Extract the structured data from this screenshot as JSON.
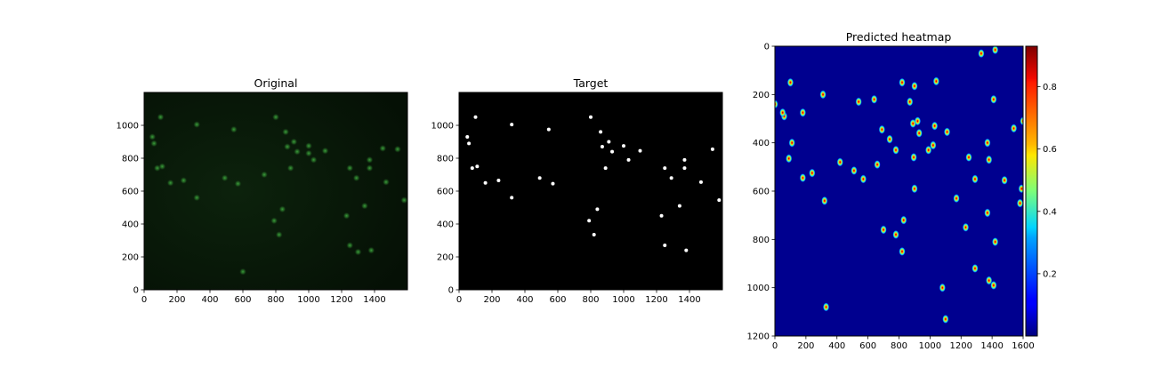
{
  "figure": {
    "background": "#ffffff",
    "frame_color": "#000000"
  },
  "chart_data": [
    {
      "type": "image",
      "title": "Original",
      "xlim": [
        0,
        1600
      ],
      "ylim": [
        1200,
        0
      ],
      "xticks": [
        0,
        200,
        400,
        600,
        800,
        1000,
        1200,
        1400
      ],
      "yticks": [
        0,
        200,
        400,
        600,
        800,
        1000
      ],
      "xtick_labels": [
        "0",
        "200",
        "400",
        "600",
        "800",
        "1000",
        "1200",
        "1400"
      ],
      "ytick_labels": [
        "0",
        "200",
        "400",
        "600",
        "800",
        "1000"
      ],
      "background_color": "#0a1a0a",
      "spot_color": "#3fa83f",
      "points": [
        [
          50,
          930
        ],
        [
          60,
          890
        ],
        [
          80,
          740
        ],
        [
          100,
          1050
        ],
        [
          110,
          750
        ],
        [
          160,
          650
        ],
        [
          240,
          665
        ],
        [
          320,
          1005
        ],
        [
          320,
          560
        ],
        [
          490,
          680
        ],
        [
          545,
          975
        ],
        [
          570,
          645
        ],
        [
          790,
          420
        ],
        [
          800,
          1050
        ],
        [
          820,
          335
        ],
        [
          840,
          490
        ],
        [
          860,
          960
        ],
        [
          870,
          870
        ],
        [
          890,
          740
        ],
        [
          910,
          900
        ],
        [
          930,
          840
        ],
        [
          1000,
          875
        ],
        [
          1030,
          790
        ],
        [
          1100,
          845
        ],
        [
          1230,
          450
        ],
        [
          1250,
          270
        ],
        [
          1250,
          740
        ],
        [
          1290,
          680
        ],
        [
          1340,
          510
        ],
        [
          1370,
          740
        ],
        [
          1370,
          790
        ],
        [
          1380,
          240
        ],
        [
          1470,
          655
        ],
        [
          1540,
          855
        ],
        [
          1580,
          545
        ],
        [
          600,
          110
        ],
        [
          1300,
          230
        ],
        [
          1450,
          860
        ],
        [
          730,
          700
        ],
        [
          1000,
          830
        ]
      ]
    },
    {
      "type": "image",
      "title": "Target",
      "xlim": [
        0,
        1600
      ],
      "ylim": [
        1200,
        0
      ],
      "xticks": [
        0,
        200,
        400,
        600,
        800,
        1000,
        1200,
        1400
      ],
      "yticks": [
        0,
        200,
        400,
        600,
        800,
        1000
      ],
      "xtick_labels": [
        "0",
        "200",
        "400",
        "600",
        "800",
        "1000",
        "1200",
        "1400"
      ],
      "ytick_labels": [
        "0",
        "200",
        "400",
        "600",
        "800",
        "1000"
      ],
      "background_color": "#000000",
      "spot_color": "#ffffff",
      "points": [
        [
          50,
          930
        ],
        [
          60,
          890
        ],
        [
          80,
          740
        ],
        [
          100,
          1050
        ],
        [
          110,
          750
        ],
        [
          160,
          650
        ],
        [
          240,
          665
        ],
        [
          320,
          1005
        ],
        [
          320,
          560
        ],
        [
          490,
          680
        ],
        [
          545,
          975
        ],
        [
          570,
          645
        ],
        [
          790,
          420
        ],
        [
          800,
          1050
        ],
        [
          820,
          335
        ],
        [
          840,
          490
        ],
        [
          860,
          960
        ],
        [
          870,
          870
        ],
        [
          890,
          740
        ],
        [
          910,
          900
        ],
        [
          930,
          840
        ],
        [
          1000,
          875
        ],
        [
          1030,
          790
        ],
        [
          1100,
          845
        ],
        [
          1230,
          450
        ],
        [
          1250,
          270
        ],
        [
          1250,
          740
        ],
        [
          1290,
          680
        ],
        [
          1340,
          510
        ],
        [
          1370,
          740
        ],
        [
          1370,
          790
        ],
        [
          1380,
          240
        ],
        [
          1470,
          655
        ],
        [
          1540,
          855
        ],
        [
          1580,
          545
        ]
      ]
    },
    {
      "type": "heatmap",
      "title": "Predicted heatmap",
      "xlim": [
        0,
        1600
      ],
      "ylim": [
        0,
        1200
      ],
      "xticks": [
        0,
        200,
        400,
        600,
        800,
        1000,
        1200,
        1400,
        1600
      ],
      "yticks": [
        0,
        200,
        400,
        600,
        800,
        1000,
        1200
      ],
      "xtick_labels": [
        "0",
        "200",
        "400",
        "600",
        "800",
        "1000",
        "1200",
        "1400",
        "1600"
      ],
      "ytick_labels": [
        "0",
        "200",
        "400",
        "600",
        "800",
        "1000",
        "1200"
      ],
      "colormap": "jet",
      "colorbar": {
        "range": [
          0,
          0.93
        ],
        "ticks": [
          0.2,
          0.4,
          0.6,
          0.8
        ],
        "tick_labels": [
          "0.2",
          "0.4",
          "0.6",
          "0.8"
        ]
      },
      "peaks": [
        [
          1080,
          1000
        ],
        [
          1410,
          990
        ],
        [
          1380,
          970
        ],
        [
          1290,
          920
        ],
        [
          820,
          850
        ],
        [
          1420,
          810
        ],
        [
          780,
          780
        ],
        [
          1230,
          750
        ],
        [
          830,
          720
        ],
        [
          1370,
          690
        ],
        [
          1580,
          650
        ],
        [
          320,
          640
        ],
        [
          1170,
          630
        ],
        [
          900,
          590
        ],
        [
          1590,
          590
        ],
        [
          570,
          550
        ],
        [
          180,
          545
        ],
        [
          1290,
          550
        ],
        [
          1480,
          555
        ],
        [
          240,
          525
        ],
        [
          510,
          515
        ],
        [
          660,
          490
        ],
        [
          420,
          480
        ],
        [
          1380,
          470
        ],
        [
          90,
          465
        ],
        [
          895,
          460
        ],
        [
          1250,
          460
        ],
        [
          780,
          430
        ],
        [
          990,
          430
        ],
        [
          1020,
          410
        ],
        [
          110,
          400
        ],
        [
          1370,
          400
        ],
        [
          740,
          385
        ],
        [
          930,
          360
        ],
        [
          1110,
          355
        ],
        [
          690,
          345
        ],
        [
          1540,
          340
        ],
        [
          1030,
          330
        ],
        [
          890,
          320
        ],
        [
          920,
          310
        ],
        [
          1600,
          310
        ],
        [
          60,
          290
        ],
        [
          50,
          275
        ],
        [
          180,
          275
        ],
        [
          0,
          240
        ],
        [
          540,
          230
        ],
        [
          870,
          230
        ],
        [
          310,
          200
        ],
        [
          900,
          165
        ],
        [
          100,
          150
        ],
        [
          820,
          150
        ],
        [
          1040,
          145
        ],
        [
          1330,
          30
        ],
        [
          1420,
          15
        ],
        [
          330,
          1080
        ],
        [
          1410,
          220
        ],
        [
          640,
          220
        ],
        [
          700,
          760
        ],
        [
          1100,
          1130
        ]
      ]
    }
  ]
}
